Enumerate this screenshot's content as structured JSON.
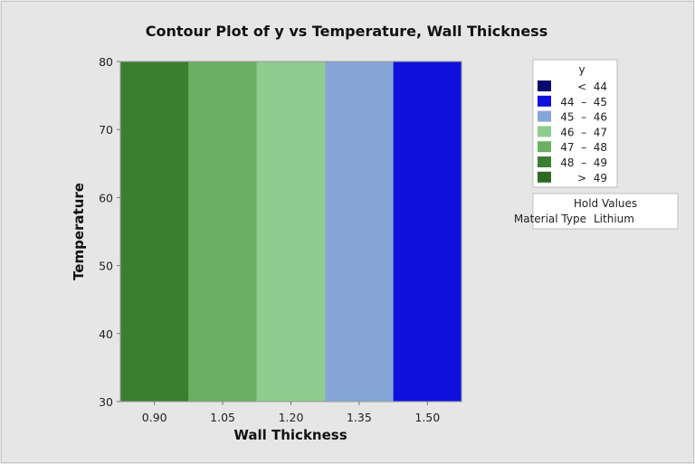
{
  "chart_data": {
    "type": "heatmap",
    "subtype": "contour",
    "title": "Contour Plot of y vs Temperature, Wall Thickness",
    "xlabel": "Wall Thickness",
    "ylabel": "Temperature",
    "xlim": [
      0.825,
      1.575
    ],
    "ylim": [
      30,
      80
    ],
    "xticks": [
      "0.90",
      "1.05",
      "1.20",
      "1.35",
      "1.50"
    ],
    "xtick_values": [
      0.9,
      1.05,
      1.2,
      1.35,
      1.5
    ],
    "yticks": [
      "30",
      "40",
      "50",
      "60",
      "70",
      "80"
    ],
    "ytick_values": [
      30,
      40,
      50,
      60,
      70,
      80
    ],
    "grid": false,
    "regions": [
      {
        "x_from": 0.825,
        "x_to": 0.975,
        "level": "48 – 49",
        "color": "#3a7f30"
      },
      {
        "x_from": 0.975,
        "x_to": 1.125,
        "level": "47 – 48",
        "color": "#6aaf62"
      },
      {
        "x_from": 1.125,
        "x_to": 1.275,
        "level": "46 – 47",
        "color": "#8fcc8f"
      },
      {
        "x_from": 1.275,
        "x_to": 1.425,
        "level": "45 – 46",
        "color": "#84a5d6"
      },
      {
        "x_from": 1.425,
        "x_to": 1.575,
        "level": "44 – 45",
        "color": "#1010dd"
      }
    ],
    "legend": {
      "title": "y",
      "placement": "right",
      "entries": [
        {
          "label": "<  44",
          "color": "#0a0a6e"
        },
        {
          "label": "44  –  45",
          "color": "#1010dd"
        },
        {
          "label": "45  –  46",
          "color": "#84a5d6"
        },
        {
          "label": "46  –  47",
          "color": "#8fcc8f"
        },
        {
          "label": "47  –  48",
          "color": "#6aaf62"
        },
        {
          "label": "48  –  49",
          "color": "#3a7f30"
        },
        {
          "label": ">  49",
          "color": "#2e6a22"
        }
      ]
    },
    "hold_values": {
      "title": "Hold Values",
      "variable": "Material Type",
      "value": "Lithium"
    }
  }
}
